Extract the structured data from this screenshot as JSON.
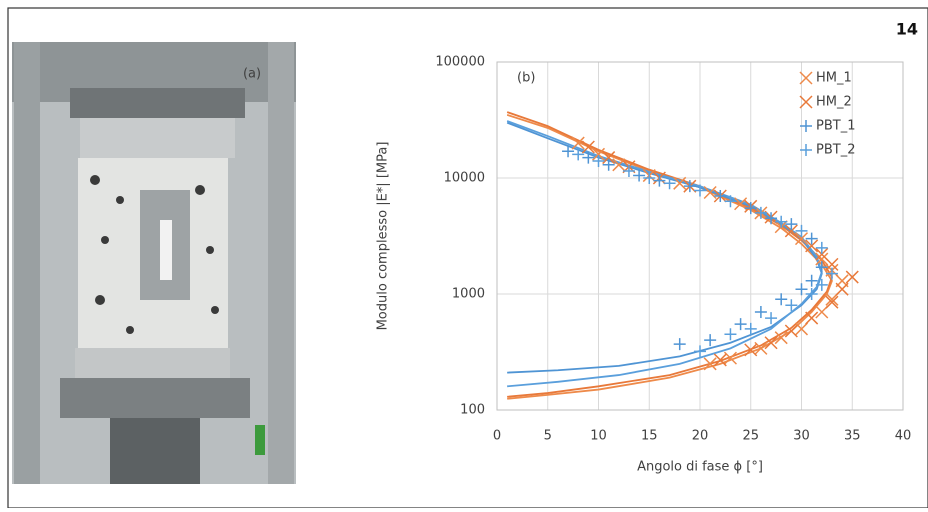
{
  "page_number": "14",
  "figure_a": {
    "label": "(a)"
  },
  "chart_data": {
    "type": "scatter",
    "panel_label": "(b)",
    "x_label": "Angolo di fase ϕ [°]",
    "y_label": "Modulo complesso |E*| [MPa]",
    "xlim": [
      0,
      40
    ],
    "xticks": [
      0,
      5,
      10,
      15,
      20,
      25,
      30,
      35,
      40
    ],
    "ylim": [
      100,
      100000
    ],
    "yticks": [
      100,
      1000,
      10000,
      100000
    ],
    "log_y": true,
    "grid": true,
    "legend": "upper right",
    "series": [
      {
        "name": "HM_1",
        "color": "#ee8a4a",
        "marker": "x",
        "x": [
          8,
          10,
          12,
          15,
          18,
          21,
          24,
          26,
          28,
          30,
          32,
          33,
          34,
          33,
          32,
          30,
          28,
          26,
          23,
          21
        ],
        "values": [
          20000,
          16000,
          13000,
          10500,
          9000,
          7500,
          6000,
          5000,
          3800,
          3000,
          2000,
          1600,
          1300,
          900,
          700,
          500,
          420,
          340,
          280,
          250
        ]
      },
      {
        "name": "HM_2",
        "color": "#e8793a",
        "marker": "x",
        "x": [
          9,
          11,
          13,
          16,
          19,
          22,
          25,
          27,
          29,
          31,
          32,
          33,
          35,
          34,
          33,
          31,
          29,
          27,
          25,
          22
        ],
        "values": [
          18500,
          15000,
          12500,
          10000,
          8500,
          7000,
          5700,
          4600,
          3500,
          2600,
          2200,
          1800,
          1400,
          1100,
          850,
          620,
          480,
          380,
          330,
          270
        ]
      },
      {
        "name": "PBT_1",
        "color": "#4f94d4",
        "marker": "+",
        "x": [
          7,
          9,
          11,
          14,
          16,
          19,
          22,
          25,
          27,
          29,
          31,
          32,
          31,
          30,
          28,
          26,
          24,
          21,
          18
        ],
        "values": [
          17000,
          15000,
          13000,
          10500,
          9500,
          8500,
          7000,
          5500,
          4500,
          4000,
          3000,
          1700,
          1300,
          1100,
          900,
          700,
          550,
          400,
          370
        ]
      },
      {
        "name": "PBT_2",
        "color": "#5a9fdc",
        "marker": "+",
        "x": [
          8,
          10,
          13,
          15,
          17,
          20,
          23,
          26,
          28,
          30,
          32,
          33,
          32,
          31,
          29,
          27,
          25,
          23,
          20
        ],
        "values": [
          16000,
          14000,
          11500,
          10000,
          9000,
          7800,
          6300,
          5000,
          4200,
          3500,
          2500,
          1500,
          1200,
          1000,
          800,
          620,
          500,
          450,
          320
        ]
      }
    ],
    "lines": [
      {
        "color": "#ee8a4a",
        "x": [
          1,
          5,
          10,
          15,
          20,
          25,
          28,
          30,
          32,
          33,
          32.5,
          31,
          29,
          26,
          22,
          17,
          10,
          5,
          1
        ],
        "values": [
          35000,
          27000,
          17000,
          11500,
          8300,
          5300,
          3700,
          2700,
          1800,
          1300,
          1000,
          700,
          480,
          340,
          250,
          190,
          150,
          135,
          125
        ]
      },
      {
        "color": "#e8793a",
        "x": [
          1,
          5,
          10,
          15,
          20,
          25,
          28,
          30,
          32,
          33,
          32.5,
          31,
          29,
          26,
          22,
          17,
          10,
          5,
          1
        ],
        "values": [
          37000,
          28000,
          17500,
          11800,
          8500,
          5500,
          3900,
          2900,
          1950,
          1400,
          1050,
          730,
          510,
          360,
          265,
          200,
          160,
          140,
          130
        ]
      },
      {
        "color": "#4f94d4",
        "x": [
          1,
          5,
          10,
          15,
          20,
          25,
          28,
          30,
          31.5,
          32,
          31.5,
          30,
          27,
          23,
          18,
          12,
          6,
          1
        ],
        "values": [
          30000,
          22000,
          15000,
          11000,
          8300,
          5700,
          4000,
          3000,
          2000,
          1500,
          1100,
          800,
          520,
          380,
          290,
          240,
          220,
          210
        ]
      },
      {
        "color": "#5a9fdc",
        "x": [
          1,
          5,
          10,
          15,
          20,
          25,
          28,
          30,
          31.5,
          32,
          31.5,
          30,
          27,
          23,
          18,
          12,
          6,
          1
        ],
        "values": [
          31000,
          23000,
          15500,
          11300,
          8500,
          5900,
          4100,
          3100,
          2100,
          1550,
          1150,
          820,
          500,
          340,
          250,
          200,
          175,
          160
        ]
      }
    ]
  }
}
